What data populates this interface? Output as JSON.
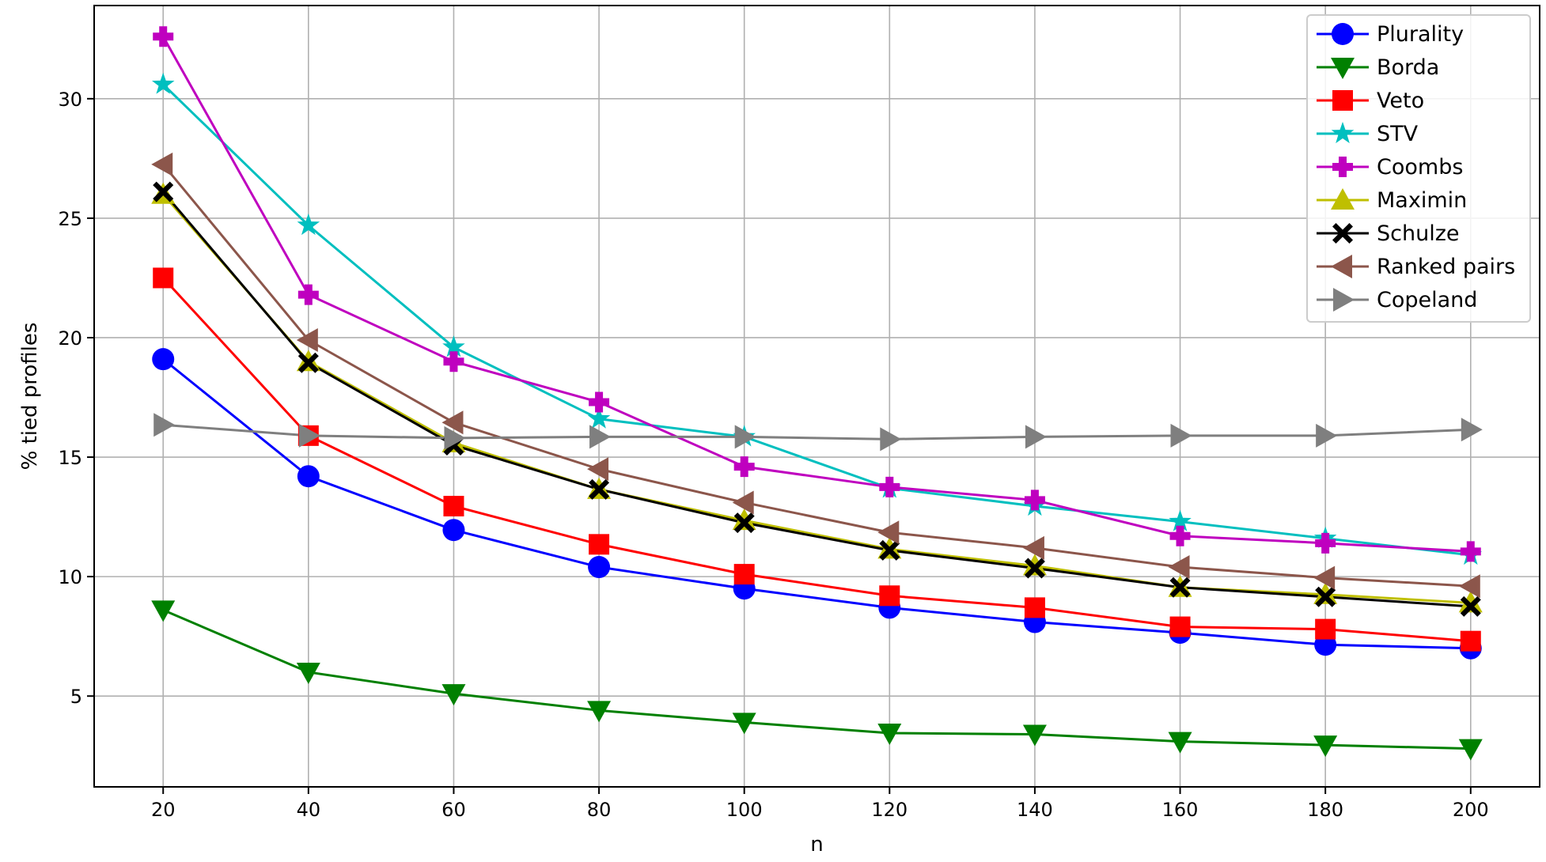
{
  "chart_data": {
    "type": "line",
    "title": "",
    "xlabel": "n",
    "ylabel": "% tied profiles",
    "x": [
      20,
      40,
      60,
      80,
      100,
      120,
      140,
      160,
      180,
      200
    ],
    "xticks": [
      20,
      40,
      60,
      80,
      100,
      120,
      140,
      160,
      180,
      200
    ],
    "yticks": [
      5,
      10,
      15,
      20,
      25,
      30
    ],
    "xlim": [
      10.5,
      209.5
    ],
    "ylim": [
      1.2,
      33.9
    ],
    "grid": true,
    "legend_position": "top-right",
    "series": [
      {
        "name": "Plurality",
        "color": "#0000ff",
        "marker": "circle",
        "values": [
          19.1,
          14.2,
          11.95,
          10.4,
          9.5,
          8.7,
          8.1,
          7.65,
          7.15,
          7.0
        ]
      },
      {
        "name": "Borda",
        "color": "#008000",
        "marker": "triangle-down",
        "values": [
          8.6,
          6.0,
          5.1,
          4.4,
          3.9,
          3.45,
          3.4,
          3.1,
          2.95,
          2.8
        ]
      },
      {
        "name": "Veto",
        "color": "#ff0000",
        "marker": "square",
        "values": [
          22.5,
          15.9,
          12.95,
          11.35,
          10.1,
          9.2,
          8.7,
          7.9,
          7.8,
          7.3
        ]
      },
      {
        "name": "STV",
        "color": "#00bfbf",
        "marker": "star",
        "values": [
          30.6,
          24.7,
          19.6,
          16.6,
          15.85,
          13.7,
          12.95,
          12.3,
          11.6,
          10.9
        ]
      },
      {
        "name": "Coombs",
        "color": "#bf00bf",
        "marker": "plus",
        "values": [
          32.6,
          21.8,
          19.0,
          17.3,
          14.6,
          13.75,
          13.2,
          11.7,
          11.4,
          11.05
        ]
      },
      {
        "name": "Maximin",
        "color": "#bfbf00",
        "marker": "triangle-up",
        "values": [
          26.0,
          19.0,
          15.6,
          13.65,
          12.35,
          11.15,
          10.45,
          9.55,
          9.25,
          8.9
        ]
      },
      {
        "name": "Schulze",
        "color": "#000000",
        "marker": "x",
        "values": [
          26.1,
          18.95,
          15.5,
          13.65,
          12.25,
          11.1,
          10.35,
          9.55,
          9.15,
          8.75
        ]
      },
      {
        "name": "Ranked pairs",
        "color": "#8c564b",
        "marker": "triangle-left",
        "values": [
          27.25,
          19.9,
          16.45,
          14.5,
          13.1,
          11.85,
          11.2,
          10.4,
          9.95,
          9.6
        ]
      },
      {
        "name": "Copeland",
        "color": "#7f7f7f",
        "marker": "triangle-right",
        "values": [
          16.35,
          15.9,
          15.8,
          15.85,
          15.85,
          15.75,
          15.85,
          15.9,
          15.9,
          16.15
        ]
      }
    ]
  }
}
